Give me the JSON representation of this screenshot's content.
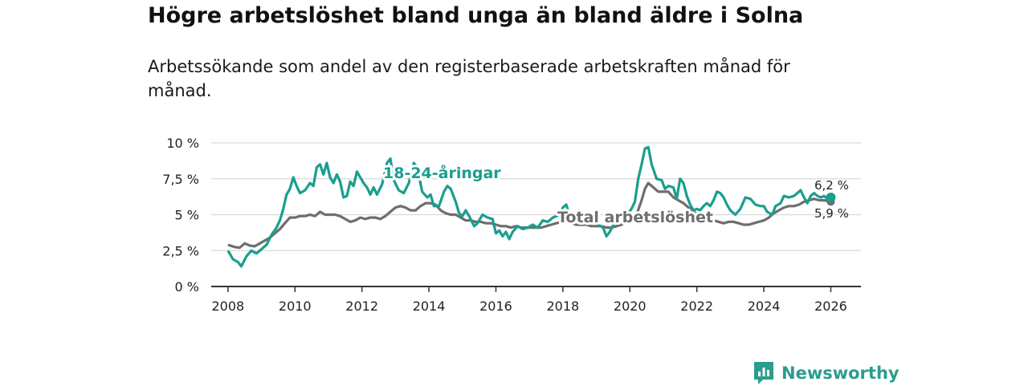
{
  "header": {
    "title": "Högre arbetslöshet bland unga än bland äldre i Solna",
    "subtitle": "Arbetssökande som andel av den registerbaserade arbetskraften månad för månad."
  },
  "brand": {
    "name": "Newsworthy"
  },
  "colors": {
    "youth": "#1a9e8f",
    "total": "#6e6e6e",
    "grid": "#d9d9d9",
    "axis": "#333333",
    "brand": "#2a9d8f"
  },
  "chart_data": {
    "type": "line",
    "title": "Högre arbetslöshet bland unga än bland äldre i Solna",
    "ylim": [
      0,
      10
    ],
    "xlim": [
      2007.5,
      2026.9
    ],
    "y_ticks": [
      {
        "value": 0,
        "label": "0 %"
      },
      {
        "value": 2.5,
        "label": "2,5 %"
      },
      {
        "value": 5,
        "label": "5 %"
      },
      {
        "value": 7.5,
        "label": "7,5 %"
      },
      {
        "value": 10,
        "label": "10 %"
      }
    ],
    "x_ticks": [
      {
        "value": 2008,
        "label": "2008"
      },
      {
        "value": 2010,
        "label": "2010"
      },
      {
        "value": 2012,
        "label": "2012"
      },
      {
        "value": 2014,
        "label": "2014"
      },
      {
        "value": 2016,
        "label": "2016"
      },
      {
        "value": 2018,
        "label": "2018"
      },
      {
        "value": 2020,
        "label": "2020"
      },
      {
        "value": 2022,
        "label": "2022"
      },
      {
        "value": 2024,
        "label": "2024"
      },
      {
        "value": 2026,
        "label": "2026"
      }
    ],
    "series": [
      {
        "name": "18-24-åringar",
        "label": "18-24-åringar",
        "end_label": "6,2 %",
        "points": [
          [
            2008.0,
            2.5
          ],
          [
            2008.15,
            1.9
          ],
          [
            2008.3,
            1.7
          ],
          [
            2008.4,
            1.4
          ],
          [
            2008.55,
            2.1
          ],
          [
            2008.7,
            2.5
          ],
          [
            2008.85,
            2.3
          ],
          [
            2009.0,
            2.6
          ],
          [
            2009.15,
            2.9
          ],
          [
            2009.3,
            3.6
          ],
          [
            2009.45,
            4.1
          ],
          [
            2009.55,
            4.6
          ],
          [
            2009.65,
            5.4
          ],
          [
            2009.75,
            6.4
          ],
          [
            2009.85,
            6.8
          ],
          [
            2009.95,
            7.6
          ],
          [
            2010.05,
            7.0
          ],
          [
            2010.15,
            6.5
          ],
          [
            2010.3,
            6.7
          ],
          [
            2010.45,
            7.2
          ],
          [
            2010.55,
            7.0
          ],
          [
            2010.65,
            8.3
          ],
          [
            2010.75,
            8.5
          ],
          [
            2010.85,
            7.8
          ],
          [
            2010.95,
            8.6
          ],
          [
            2011.05,
            7.6
          ],
          [
            2011.15,
            7.2
          ],
          [
            2011.25,
            7.8
          ],
          [
            2011.35,
            7.3
          ],
          [
            2011.45,
            6.2
          ],
          [
            2011.55,
            6.3
          ],
          [
            2011.65,
            7.3
          ],
          [
            2011.75,
            7.0
          ],
          [
            2011.85,
            8.0
          ],
          [
            2011.95,
            7.6
          ],
          [
            2012.05,
            7.2
          ],
          [
            2012.15,
            6.9
          ],
          [
            2012.25,
            6.4
          ],
          [
            2012.35,
            6.9
          ],
          [
            2012.45,
            6.4
          ],
          [
            2012.6,
            7.1
          ],
          [
            2012.75,
            8.6
          ],
          [
            2012.85,
            8.9
          ],
          [
            2012.95,
            7.4
          ],
          [
            2013.1,
            6.7
          ],
          [
            2013.25,
            6.5
          ],
          [
            2013.4,
            7.2
          ],
          [
            2013.55,
            8.6
          ],
          [
            2013.65,
            8.3
          ],
          [
            2013.8,
            6.6
          ],
          [
            2013.95,
            6.2
          ],
          [
            2014.05,
            6.4
          ],
          [
            2014.15,
            5.6
          ],
          [
            2014.3,
            5.6
          ],
          [
            2014.45,
            6.6
          ],
          [
            2014.55,
            7.0
          ],
          [
            2014.65,
            6.8
          ],
          [
            2014.8,
            5.9
          ],
          [
            2014.9,
            5.1
          ],
          [
            2015.0,
            4.9
          ],
          [
            2015.1,
            5.3
          ],
          [
            2015.2,
            4.9
          ],
          [
            2015.35,
            4.2
          ],
          [
            2015.45,
            4.4
          ],
          [
            2015.6,
            5.0
          ],
          [
            2015.75,
            4.8
          ],
          [
            2015.9,
            4.7
          ],
          [
            2016.0,
            3.7
          ],
          [
            2016.1,
            3.9
          ],
          [
            2016.2,
            3.5
          ],
          [
            2016.3,
            3.8
          ],
          [
            2016.4,
            3.3
          ],
          [
            2016.5,
            3.8
          ],
          [
            2016.65,
            4.2
          ],
          [
            2016.8,
            4.0
          ],
          [
            2016.95,
            4.1
          ],
          [
            2017.1,
            4.3
          ],
          [
            2017.25,
            4.1
          ],
          [
            2017.4,
            4.6
          ],
          [
            2017.55,
            4.5
          ],
          [
            2017.7,
            4.8
          ],
          [
            2017.8,
            4.9
          ],
          [
            2017.9,
            5.0
          ],
          [
            2018.0,
            5.5
          ],
          [
            2018.1,
            5.7
          ],
          [
            2018.2,
            5.0
          ],
          [
            2018.3,
            4.7
          ],
          [
            2018.45,
            5.3
          ],
          [
            2018.6,
            5.0
          ],
          [
            2018.75,
            4.6
          ],
          [
            2018.9,
            4.5
          ],
          [
            2019.05,
            4.3
          ],
          [
            2019.2,
            4.1
          ],
          [
            2019.3,
            3.5
          ],
          [
            2019.4,
            3.8
          ],
          [
            2019.55,
            4.5
          ],
          [
            2019.7,
            5.0
          ],
          [
            2019.85,
            5.1
          ],
          [
            2019.95,
            5.1
          ],
          [
            2020.05,
            5.4
          ],
          [
            2020.15,
            5.9
          ],
          [
            2020.25,
            7.5
          ],
          [
            2020.35,
            8.5
          ],
          [
            2020.45,
            9.6
          ],
          [
            2020.55,
            9.7
          ],
          [
            2020.65,
            8.5
          ],
          [
            2020.8,
            7.5
          ],
          [
            2020.95,
            7.4
          ],
          [
            2021.05,
            6.8
          ],
          [
            2021.15,
            7.0
          ],
          [
            2021.3,
            6.9
          ],
          [
            2021.4,
            6.1
          ],
          [
            2021.5,
            7.5
          ],
          [
            2021.6,
            7.2
          ],
          [
            2021.7,
            6.3
          ],
          [
            2021.8,
            5.7
          ],
          [
            2021.9,
            5.3
          ],
          [
            2022.0,
            5.4
          ],
          [
            2022.1,
            5.3
          ],
          [
            2022.2,
            5.6
          ],
          [
            2022.3,
            5.8
          ],
          [
            2022.4,
            5.6
          ],
          [
            2022.5,
            6.0
          ],
          [
            2022.6,
            6.6
          ],
          [
            2022.7,
            6.5
          ],
          [
            2022.8,
            6.2
          ],
          [
            2022.9,
            5.7
          ],
          [
            2023.0,
            5.3
          ],
          [
            2023.15,
            5.0
          ],
          [
            2023.3,
            5.4
          ],
          [
            2023.45,
            6.2
          ],
          [
            2023.6,
            6.1
          ],
          [
            2023.75,
            5.7
          ],
          [
            2023.9,
            5.6
          ],
          [
            2024.0,
            5.6
          ],
          [
            2024.1,
            5.2
          ],
          [
            2024.25,
            5.0
          ],
          [
            2024.35,
            5.6
          ],
          [
            2024.5,
            5.8
          ],
          [
            2024.6,
            6.3
          ],
          [
            2024.75,
            6.2
          ],
          [
            2024.9,
            6.3
          ],
          [
            2025.0,
            6.5
          ],
          [
            2025.1,
            6.7
          ],
          [
            2025.2,
            6.2
          ],
          [
            2025.3,
            5.8
          ],
          [
            2025.4,
            6.3
          ],
          [
            2025.5,
            6.5
          ],
          [
            2025.6,
            6.3
          ],
          [
            2025.7,
            6.2
          ],
          [
            2025.8,
            6.3
          ],
          [
            2025.9,
            6.1
          ],
          [
            2026.0,
            6.2
          ]
        ]
      },
      {
        "name": "Total arbetslöshet",
        "label": "Total arbetslöshet",
        "end_label": "5,9 %",
        "points": [
          [
            2008.0,
            2.9
          ],
          [
            2008.2,
            2.75
          ],
          [
            2008.35,
            2.7
          ],
          [
            2008.5,
            3.0
          ],
          [
            2008.65,
            2.85
          ],
          [
            2008.8,
            2.8
          ],
          [
            2008.95,
            3.0
          ],
          [
            2009.1,
            3.2
          ],
          [
            2009.25,
            3.4
          ],
          [
            2009.4,
            3.7
          ],
          [
            2009.55,
            4.0
          ],
          [
            2009.7,
            4.4
          ],
          [
            2009.85,
            4.8
          ],
          [
            2010.0,
            4.8
          ],
          [
            2010.15,
            4.9
          ],
          [
            2010.3,
            4.9
          ],
          [
            2010.45,
            5.0
          ],
          [
            2010.6,
            4.9
          ],
          [
            2010.75,
            5.2
          ],
          [
            2010.9,
            5.0
          ],
          [
            2011.05,
            5.0
          ],
          [
            2011.2,
            5.0
          ],
          [
            2011.35,
            4.9
          ],
          [
            2011.5,
            4.7
          ],
          [
            2011.65,
            4.5
          ],
          [
            2011.8,
            4.6
          ],
          [
            2011.95,
            4.8
          ],
          [
            2012.1,
            4.7
          ],
          [
            2012.25,
            4.8
          ],
          [
            2012.4,
            4.8
          ],
          [
            2012.55,
            4.7
          ],
          [
            2012.7,
            4.9
          ],
          [
            2012.85,
            5.2
          ],
          [
            2013.0,
            5.5
          ],
          [
            2013.15,
            5.6
          ],
          [
            2013.3,
            5.5
          ],
          [
            2013.45,
            5.3
          ],
          [
            2013.6,
            5.3
          ],
          [
            2013.75,
            5.6
          ],
          [
            2013.9,
            5.8
          ],
          [
            2014.05,
            5.8
          ],
          [
            2014.2,
            5.7
          ],
          [
            2014.35,
            5.3
          ],
          [
            2014.5,
            5.1
          ],
          [
            2014.65,
            5.0
          ],
          [
            2014.8,
            5.0
          ],
          [
            2014.95,
            4.8
          ],
          [
            2015.1,
            4.6
          ],
          [
            2015.25,
            4.6
          ],
          [
            2015.4,
            4.5
          ],
          [
            2015.55,
            4.5
          ],
          [
            2015.7,
            4.4
          ],
          [
            2015.85,
            4.4
          ],
          [
            2016.0,
            4.3
          ],
          [
            2016.15,
            4.2
          ],
          [
            2016.3,
            4.2
          ],
          [
            2016.45,
            4.1
          ],
          [
            2016.6,
            4.2
          ],
          [
            2016.75,
            4.1
          ],
          [
            2016.9,
            4.1
          ],
          [
            2017.05,
            4.1
          ],
          [
            2017.2,
            4.1
          ],
          [
            2017.35,
            4.1
          ],
          [
            2017.5,
            4.2
          ],
          [
            2017.65,
            4.3
          ],
          [
            2017.8,
            4.4
          ],
          [
            2017.95,
            4.5
          ],
          [
            2018.1,
            4.5
          ],
          [
            2018.25,
            4.4
          ],
          [
            2018.4,
            4.3
          ],
          [
            2018.55,
            4.3
          ],
          [
            2018.7,
            4.3
          ],
          [
            2018.85,
            4.2
          ],
          [
            2019.0,
            4.2
          ],
          [
            2019.15,
            4.2
          ],
          [
            2019.3,
            4.1
          ],
          [
            2019.45,
            4.1
          ],
          [
            2019.6,
            4.2
          ],
          [
            2019.75,
            4.3
          ],
          [
            2019.9,
            4.5
          ],
          [
            2020.05,
            4.6
          ],
          [
            2020.2,
            5.0
          ],
          [
            2020.35,
            6.0
          ],
          [
            2020.45,
            6.8
          ],
          [
            2020.55,
            7.2
          ],
          [
            2020.7,
            6.9
          ],
          [
            2020.85,
            6.6
          ],
          [
            2021.0,
            6.6
          ],
          [
            2021.15,
            6.6
          ],
          [
            2021.3,
            6.2
          ],
          [
            2021.45,
            6.0
          ],
          [
            2021.6,
            5.8
          ],
          [
            2021.75,
            5.5
          ],
          [
            2021.9,
            5.2
          ],
          [
            2022.05,
            5.0
          ],
          [
            2022.2,
            4.8
          ],
          [
            2022.35,
            4.7
          ],
          [
            2022.5,
            4.6
          ],
          [
            2022.65,
            4.5
          ],
          [
            2022.8,
            4.4
          ],
          [
            2022.95,
            4.5
          ],
          [
            2023.1,
            4.5
          ],
          [
            2023.25,
            4.4
          ],
          [
            2023.4,
            4.3
          ],
          [
            2023.55,
            4.3
          ],
          [
            2023.7,
            4.4
          ],
          [
            2023.85,
            4.5
          ],
          [
            2024.0,
            4.6
          ],
          [
            2024.15,
            4.8
          ],
          [
            2024.3,
            5.1
          ],
          [
            2024.45,
            5.3
          ],
          [
            2024.6,
            5.5
          ],
          [
            2024.75,
            5.6
          ],
          [
            2024.9,
            5.6
          ],
          [
            2025.05,
            5.7
          ],
          [
            2025.2,
            5.9
          ],
          [
            2025.35,
            6.0
          ],
          [
            2025.5,
            6.1
          ],
          [
            2025.65,
            6.0
          ],
          [
            2025.8,
            6.0
          ],
          [
            2026.0,
            5.9
          ]
        ]
      }
    ]
  }
}
